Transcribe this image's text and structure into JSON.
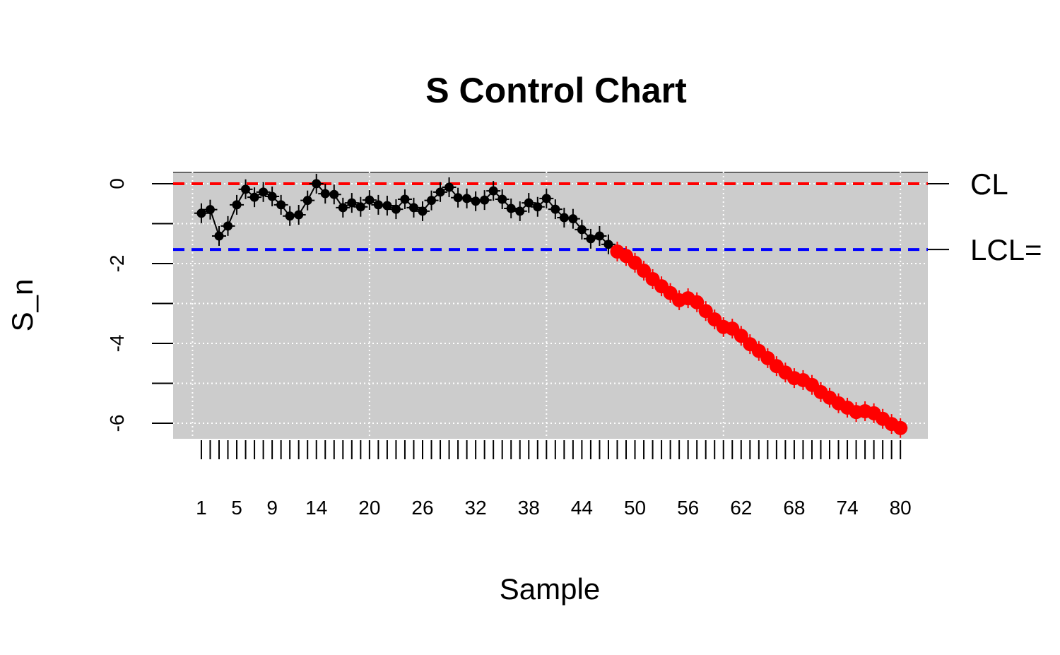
{
  "chart_data": {
    "type": "line",
    "title": "S Control Chart",
    "x_label": "Sample",
    "y_label": "S_n",
    "x": [
      1,
      2,
      3,
      4,
      5,
      6,
      7,
      8,
      9,
      10,
      11,
      12,
      13,
      14,
      15,
      16,
      17,
      18,
      19,
      20,
      21,
      22,
      23,
      24,
      25,
      26,
      27,
      28,
      29,
      30,
      31,
      32,
      33,
      34,
      35,
      36,
      37,
      38,
      39,
      40,
      41,
      42,
      43,
      44,
      45,
      46,
      47,
      48,
      49,
      50,
      51,
      52,
      53,
      54,
      55,
      56,
      57,
      58,
      59,
      60,
      61,
      62,
      63,
      64,
      65,
      66,
      67,
      68,
      69,
      70,
      71,
      72,
      73,
      74,
      75,
      76,
      77,
      78,
      79,
      80
    ],
    "series": [
      {
        "color": "#000000",
        "out_of_control_color": "#ff0000",
        "values": [
          -0.74,
          -0.65,
          -1.31,
          -1.06,
          -0.53,
          -0.14,
          -0.34,
          -0.21,
          -0.32,
          -0.53,
          -0.81,
          -0.78,
          -0.42,
          0.0,
          -0.25,
          -0.27,
          -0.6,
          -0.48,
          -0.58,
          -0.41,
          -0.53,
          -0.55,
          -0.64,
          -0.39,
          -0.6,
          -0.69,
          -0.42,
          -0.21,
          -0.09,
          -0.35,
          -0.37,
          -0.44,
          -0.41,
          -0.18,
          -0.39,
          -0.62,
          -0.69,
          -0.48,
          -0.58,
          -0.37,
          -0.64,
          -0.85,
          -0.88,
          -1.15,
          -1.38,
          -1.31,
          -1.52,
          -1.7,
          -1.81,
          -1.98,
          -2.18,
          -2.39,
          -2.57,
          -2.74,
          -2.92,
          -2.87,
          -2.97,
          -3.19,
          -3.4,
          -3.59,
          -3.63,
          -3.81,
          -4.02,
          -4.19,
          -4.37,
          -4.57,
          -4.73,
          -4.87,
          -4.92,
          -5.04,
          -5.22,
          -5.36,
          -5.5,
          -5.61,
          -5.72,
          -5.7,
          -5.75,
          -5.89,
          -6.02,
          -6.12
        ]
      }
    ],
    "limits": [
      {
        "label": "CL",
        "value": 0,
        "color": "#ff0000"
      },
      {
        "label": "LCL=",
        "value": -1.65,
        "color": "#0000ff"
      }
    ],
    "xlim": [
      -2.19,
      83.1
    ],
    "ylim": [
      -6.39,
      0.3
    ],
    "xticks": [
      1,
      5,
      9,
      14,
      20,
      26,
      32,
      38,
      44,
      50,
      56,
      62,
      68,
      74,
      80
    ],
    "yticks": [
      0,
      -2,
      -4,
      -6
    ],
    "xgrid": [
      0,
      20,
      40,
      60,
      80
    ],
    "ygrid": [
      0,
      -1,
      -2,
      -3,
      -4,
      -5,
      -6
    ],
    "grid": true,
    "background": "#cccccc"
  }
}
